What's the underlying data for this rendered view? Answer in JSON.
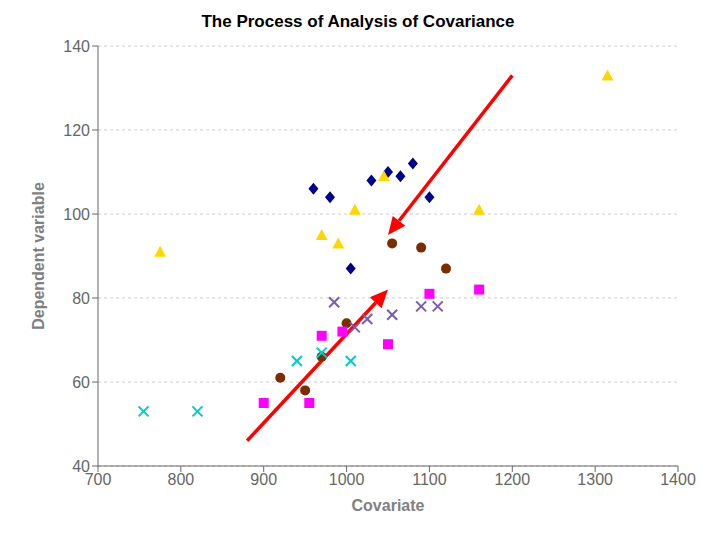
{
  "chart_data": {
    "type": "scatter",
    "title": "The Process of Analysis of Covariance",
    "xlabel": "Covariate",
    "ylabel": "Dependent variable",
    "xlim": [
      700,
      1400
    ],
    "ylim": [
      40,
      140
    ],
    "xticks": [
      700,
      800,
      900,
      1000,
      1100,
      1200,
      1300,
      1400
    ],
    "yticks": [
      40,
      60,
      80,
      100,
      120,
      140
    ],
    "grid": "y",
    "series": [
      {
        "color": "#00008B",
        "marker": "diamond",
        "x": [
          960,
          980,
          1005,
          1030,
          1050,
          1065,
          1080,
          1100
        ],
        "values": [
          106,
          104,
          87,
          108,
          110,
          109,
          112,
          104
        ]
      },
      {
        "color": "#FFD700",
        "marker": "triangle",
        "x": [
          775,
          970,
          990,
          1010,
          1045,
          1160,
          1315
        ],
        "values": [
          91,
          95,
          93,
          101,
          109,
          101,
          133
        ]
      },
      {
        "color": "#7B2D00",
        "marker": "circle",
        "x": [
          920,
          950,
          970,
          1000,
          1055,
          1090,
          1120
        ],
        "values": [
          61,
          58,
          66,
          74,
          93,
          92,
          87
        ]
      },
      {
        "color": "#FF00FF",
        "marker": "square",
        "x": [
          900,
          955,
          970,
          995,
          1050,
          1100,
          1160
        ],
        "values": [
          55,
          55,
          71,
          72,
          69,
          81,
          82
        ]
      },
      {
        "color": "#7B5EA7",
        "marker": "x",
        "x": [
          985,
          1010,
          1025,
          1055,
          1090,
          1110
        ],
        "values": [
          79,
          73,
          75,
          76,
          78,
          78
        ]
      },
      {
        "color": "#00CCCC",
        "marker": "x",
        "x": [
          755,
          820,
          940,
          970,
          1005
        ],
        "values": [
          53,
          53,
          65,
          67,
          65
        ]
      }
    ],
    "arrows": [
      {
        "start": [
          1200,
          133
        ],
        "end": [
          1050,
          95
        ],
        "color": "red"
      },
      {
        "start": [
          880,
          46
        ],
        "end": [
          1050,
          82
        ],
        "color": "red"
      }
    ]
  }
}
